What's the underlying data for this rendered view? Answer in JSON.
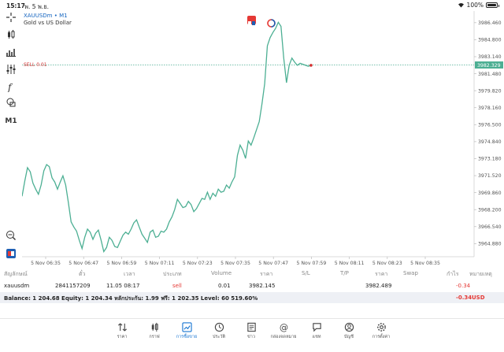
{
  "status_bar": {
    "time": "15:17",
    "date": "พ. 5 พ.ย.",
    "battery": "100%"
  },
  "toolbar": {
    "items": [
      "crosshair-icon",
      "candles-icon",
      "bars-icon",
      "indicators-icon",
      "function-icon",
      "objects-icon"
    ],
    "timeframe": "M1"
  },
  "chart": {
    "symbol": "XAUUSDm",
    "timeframe": "M1",
    "description": "Gold vs US Dollar",
    "sell_label": "SELL 0.01",
    "current_price": "3982.329",
    "price_ticks": [
      "3986.460",
      "3984.800",
      "3983.140",
      "3981.480",
      "3979.820",
      "3978.160",
      "3976.500",
      "3974.840",
      "3973.180",
      "3971.520",
      "3969.860",
      "3968.200",
      "3966.540",
      "3964.880"
    ],
    "time_ticks": [
      "5 Nov 06:35",
      "5 Nov 06:47",
      "5 Nov 06:59",
      "5 Nov 07:11",
      "5 Nov 07:23",
      "5 Nov 07:35",
      "5 Nov 07:47",
      "5 Nov 07:59",
      "5 Nov 08:11",
      "5 Nov 08:23",
      "5 Nov 08:35"
    ],
    "colors": {
      "line": "#4caf93",
      "sell": "#d32f2f",
      "price_box": "#4caf93"
    }
  },
  "chart_data": {
    "type": "line",
    "ylim": [
      3963.6,
      3987.6
    ],
    "x": [
      0,
      1,
      2,
      3,
      4,
      5,
      6,
      7,
      8,
      9,
      10,
      11,
      12,
      13,
      14,
      15,
      16,
      17,
      18,
      19,
      20,
      21,
      22,
      23,
      24,
      25,
      26,
      27,
      28,
      29,
      30,
      31,
      32,
      33,
      34,
      35,
      36,
      37,
      38,
      39,
      40,
      41,
      42,
      43,
      44,
      45,
      46,
      47,
      48,
      49,
      50,
      51,
      52,
      53,
      54,
      55,
      56,
      57,
      58,
      59,
      60,
      61,
      62,
      63,
      64,
      65,
      66,
      67,
      68,
      69,
      70,
      71,
      72,
      73,
      74,
      75,
      76,
      77,
      78,
      79,
      80,
      81,
      82,
      83,
      84,
      85,
      86,
      87,
      88,
      89,
      90,
      91,
      92,
      93,
      94,
      95,
      96,
      97,
      98,
      99,
      100,
      101,
      102,
      103,
      104,
      105,
      106,
      107,
      108,
      109,
      110,
      111,
      112,
      113,
      114,
      115,
      116,
      117,
      118,
      119,
      120,
      121,
      122,
      123,
      124,
      125,
      126,
      127,
      128,
      129,
      130
    ],
    "values": [
      3969.5,
      3971.0,
      3972.3,
      3971.9,
      3970.8,
      3970.2,
      3969.7,
      3970.6,
      3972.0,
      3972.6,
      3972.4,
      3971.3,
      3970.9,
      3970.2,
      3970.9,
      3971.5,
      3970.6,
      3968.9,
      3967.0,
      3966.5,
      3966.1,
      3965.2,
      3964.4,
      3965.5,
      3966.3,
      3966.0,
      3965.3,
      3965.9,
      3966.2,
      3965.2,
      3964.1,
      3964.5,
      3965.5,
      3965.2,
      3964.6,
      3964.5,
      3965.1,
      3965.7,
      3966.0,
      3965.8,
      3966.3,
      3966.9,
      3967.2,
      3966.5,
      3965.8,
      3965.4,
      3965.0,
      3966.0,
      3966.2,
      3965.5,
      3965.6,
      3966.1,
      3966.0,
      3966.3,
      3967.0,
      3967.5,
      3968.2,
      3969.2,
      3968.8,
      3968.4,
      3968.5,
      3969.0,
      3968.7,
      3968.0,
      3968.3,
      3968.8,
      3969.3,
      3969.2,
      3969.9,
      3969.2,
      3969.8,
      3969.5,
      3970.2,
      3969.9,
      3970.0,
      3970.6,
      3970.3,
      3970.9,
      3971.4,
      3973.5,
      3974.5,
      3974.0,
      3973.2,
      3974.9,
      3974.5,
      3975.2,
      3976.0,
      3976.8,
      3978.5,
      3980.5,
      3984.2,
      3985.0,
      3985.5,
      3985.9,
      3986.5,
      3986.1,
      3983.0,
      3980.6,
      3982.3,
      3983.0,
      3982.6,
      3982.3,
      3982.5,
      3982.4,
      3982.3,
      3982.2,
      3982.3,
      3982.3,
      3982.4,
      3982.3,
      3982.3,
      3982.3,
      3982.3,
      3982.3,
      3982.3,
      3982.3,
      3982.3,
      3982.3,
      3982.3,
      3982.3,
      3982.3,
      3982.3,
      3982.3,
      3982.3,
      3982.3,
      3982.3,
      3982.3,
      3982.3,
      3982.3,
      3982.3,
      3982.3
    ],
    "sell_price": 3982.329
  },
  "table": {
    "headers": [
      "สัญลักษณ์",
      "ตั๋ว",
      "เวลา",
      "ประเภท",
      "Volume",
      "ราคา",
      "S/L",
      "T/P",
      "ราคา",
      "Swap",
      "กำไร",
      "หมายเหตุ"
    ],
    "position": {
      "symbol": "xauusdm",
      "ticket": "2841157209",
      "time": "11.05 08:17",
      "type": "sell",
      "volume": "0.01",
      "price": "3982.145",
      "current": "3982.489",
      "profit": "-0.34"
    },
    "balance_line": "Balance: 1 204.68 Equity: 1 204.34 หลักประกัน: 1.99 ฟรี: 1 202.35 Level: 60 519.60%",
    "total_profit": "-0.34",
    "currency": "USD"
  },
  "nav": {
    "items": [
      {
        "label": "ราคา",
        "icon": "quotes-icon"
      },
      {
        "label": "กราฟ",
        "icon": "chart-icon"
      },
      {
        "label": "การซื้อขาย",
        "icon": "trade-icon",
        "active": true
      },
      {
        "label": "ประวัติ",
        "icon": "history-icon"
      },
      {
        "label": "ข่าว",
        "icon": "news-icon"
      },
      {
        "label": "กล่องจดหมาย",
        "icon": "mailbox-icon"
      },
      {
        "label": "แชท",
        "icon": "chat-icon"
      },
      {
        "label": "บัญชี",
        "icon": "account-icon"
      },
      {
        "label": "การตั้งค่า",
        "icon": "settings-icon"
      }
    ]
  }
}
